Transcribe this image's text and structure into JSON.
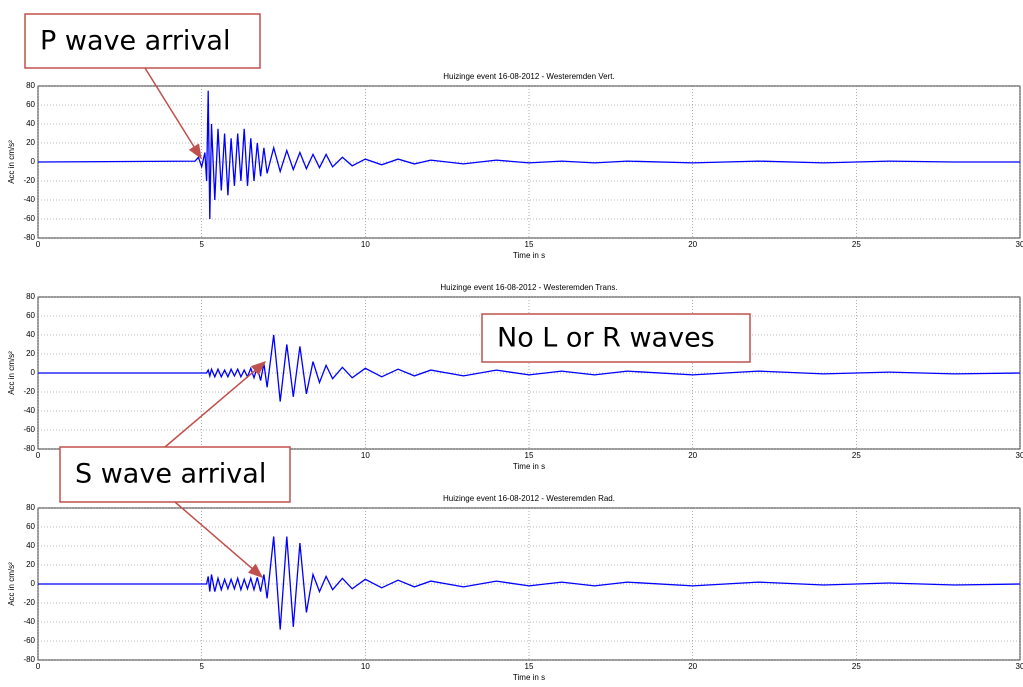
{
  "chart_data": [
    {
      "type": "line",
      "title": "Huizinge event 16-08-2012 - Westeremden Vert.",
      "x_label": "Time in s",
      "y_label": "Acc in cm/s²",
      "xlim": [
        0,
        30
      ],
      "ylim": [
        -80,
        80
      ],
      "xticks": [
        0,
        5,
        10,
        15,
        20,
        25,
        30
      ],
      "yticks": [
        -80,
        -60,
        -40,
        -20,
        0,
        20,
        40,
        60,
        80
      ],
      "grid": true,
      "color": "#0000ff",
      "x": [
        0,
        4.8,
        4.9,
        5.0,
        5.1,
        5.15,
        5.2,
        5.25,
        5.3,
        5.4,
        5.5,
        5.6,
        5.7,
        5.8,
        5.9,
        6.0,
        6.1,
        6.2,
        6.3,
        6.4,
        6.5,
        6.6,
        6.7,
        6.8,
        6.9,
        7.0,
        7.2,
        7.4,
        7.6,
        7.8,
        8.0,
        8.2,
        8.4,
        8.6,
        8.8,
        9.0,
        9.3,
        9.6,
        10,
        10.5,
        11,
        11.5,
        12,
        13,
        14,
        15,
        16,
        17,
        18,
        20,
        22,
        24,
        26,
        28,
        30
      ],
      "values": [
        0,
        1,
        5,
        -5,
        10,
        -20,
        75,
        -60,
        40,
        -40,
        35,
        -30,
        30,
        -35,
        25,
        -25,
        30,
        -20,
        35,
        -25,
        25,
        -20,
        20,
        -15,
        15,
        -12,
        15,
        -10,
        12,
        -8,
        10,
        -7,
        8,
        -6,
        8,
        -5,
        5,
        -4,
        3,
        -3,
        3,
        -2,
        2,
        -2,
        2,
        -1,
        1,
        -1,
        1,
        -1,
        1,
        -1,
        1,
        0,
        0
      ]
    },
    {
      "type": "line",
      "title": "Huizinge event 16-08-2012 - Westeremden Trans.",
      "x_label": "Time in s",
      "y_label": "Acc in cm/s²",
      "xlim": [
        0,
        30
      ],
      "ylim": [
        -80,
        80
      ],
      "xticks": [
        0,
        5,
        10,
        15,
        20,
        25,
        30
      ],
      "yticks": [
        -80,
        -60,
        -40,
        -20,
        0,
        20,
        40,
        60,
        80
      ],
      "grid": true,
      "color": "#0000ff",
      "x": [
        0,
        4.8,
        4.9,
        5.0,
        5.1,
        5.15,
        5.2,
        5.25,
        5.3,
        5.4,
        5.5,
        5.6,
        5.7,
        5.8,
        5.9,
        6.0,
        6.1,
        6.2,
        6.3,
        6.4,
        6.5,
        6.6,
        6.7,
        6.8,
        6.9,
        7.0,
        7.2,
        7.4,
        7.6,
        7.8,
        8.0,
        8.2,
        8.4,
        8.6,
        8.8,
        9.0,
        9.3,
        9.6,
        10,
        10.5,
        11,
        11.5,
        12,
        13,
        14,
        15,
        16,
        17,
        18,
        20,
        22,
        24,
        26,
        28,
        30
      ],
      "values": [
        0,
        0,
        0,
        0,
        0,
        0,
        3,
        -3,
        4,
        -4,
        4,
        -4,
        3,
        -4,
        4,
        -3,
        4,
        -4,
        3,
        -4,
        5,
        -5,
        6,
        -8,
        10,
        -15,
        40,
        -30,
        30,
        -25,
        28,
        -22,
        12,
        -10,
        8,
        -6,
        6,
        -5,
        5,
        -4,
        4,
        -3,
        3,
        -3,
        3,
        -2,
        2,
        -2,
        2,
        -2,
        2,
        -1,
        1,
        -1,
        0
      ]
    },
    {
      "type": "line",
      "title": "Huizinge event 16-08-2012 - Westeremden Rad.",
      "x_label": "Time in s",
      "y_label": "Acc in cm/s²",
      "xlim": [
        0,
        30
      ],
      "ylim": [
        -80,
        80
      ],
      "xticks": [
        0,
        5,
        10,
        15,
        20,
        25,
        30
      ],
      "yticks": [
        -80,
        -60,
        -40,
        -20,
        0,
        20,
        40,
        60,
        80
      ],
      "grid": true,
      "color": "#0000ff",
      "x": [
        0,
        4.8,
        4.9,
        5.0,
        5.1,
        5.15,
        5.2,
        5.25,
        5.3,
        5.4,
        5.5,
        5.6,
        5.7,
        5.8,
        5.9,
        6.0,
        6.1,
        6.2,
        6.3,
        6.4,
        6.5,
        6.6,
        6.7,
        6.8,
        6.9,
        7.0,
        7.2,
        7.4,
        7.6,
        7.8,
        8.0,
        8.2,
        8.4,
        8.6,
        8.8,
        9.0,
        9.3,
        9.6,
        10,
        10.5,
        11,
        11.5,
        12,
        13,
        14,
        15,
        16,
        17,
        18,
        20,
        22,
        24,
        26,
        28,
        30
      ],
      "values": [
        0,
        0,
        0,
        0,
        0,
        0,
        8,
        -8,
        10,
        -8,
        6,
        -6,
        5,
        -5,
        5,
        -5,
        6,
        -6,
        5,
        -5,
        6,
        -6,
        7,
        -8,
        10,
        -15,
        50,
        -48,
        50,
        -45,
        43,
        -30,
        10,
        -8,
        8,
        -6,
        6,
        -5,
        5,
        -4,
        4,
        -3,
        3,
        -3,
        3,
        -2,
        2,
        -2,
        2,
        -2,
        2,
        -1,
        1,
        -1,
        0
      ]
    }
  ],
  "annotations": [
    "P wave arrival",
    "No L or R waves",
    "S wave arrival"
  ]
}
